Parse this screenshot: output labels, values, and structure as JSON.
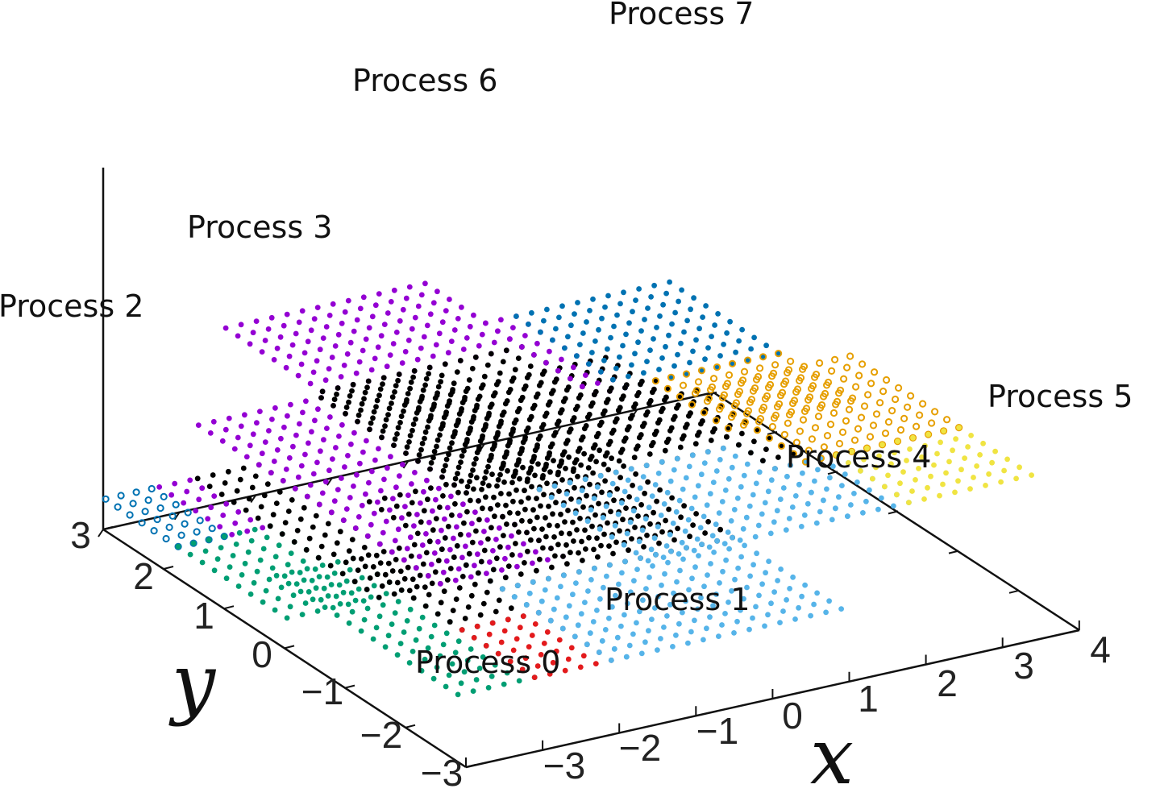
{
  "chart_data": {
    "type": "scatter",
    "title": "",
    "xlabel": "x",
    "ylabel": "y",
    "xlim": [
      -4,
      4
    ],
    "ylim": [
      -3,
      3
    ],
    "x_ticks": [
      "−3",
      "−2",
      "−1",
      "0",
      "1",
      "2",
      "3",
      "4"
    ],
    "y_ticks": [
      "−3",
      "−2",
      "−1",
      "0",
      "1",
      "2"
    ],
    "z_ticks": [
      "3"
    ],
    "grid": false,
    "legend": "none",
    "colors": {
      "black": "#000000",
      "green": "#009e73",
      "red": "#e31a1c",
      "skyblue": "#56b4e9",
      "purple": "#9400d3",
      "orange": "#e69f00",
      "blue": "#0072b2",
      "yellow": "#f0e442"
    },
    "processes": [
      {
        "label": "Process 0",
        "x_range": [
          -3.0,
          -1.0
        ],
        "y_range": [
          -1.6,
          1.4
        ],
        "level": 0,
        "regions": [
          {
            "color": "green",
            "x_range": [
              -3.0,
              -2.0
            ],
            "y_range": [
              -1.6,
              1.4
            ],
            "marker": "dot"
          },
          {
            "color": "black",
            "x_range": [
              -2.0,
              -1.0
            ],
            "y_range": [
              -0.4,
              1.4
            ],
            "marker": "dot"
          },
          {
            "color": "red",
            "x_range": [
              -2.0,
              -1.0
            ],
            "y_range": [
              -1.6,
              -0.4
            ],
            "marker": "dot"
          },
          {
            "color": "skyblue",
            "x_range": [
              -1.0,
              -0.8
            ],
            "y_range": [
              -1.6,
              1.4
            ],
            "marker": "dot"
          }
        ]
      },
      {
        "label": "Process 1",
        "x_range": [
          -1.0,
          2.0
        ],
        "y_range": [
          -1.6,
          2.5
        ],
        "level": 0,
        "regions": [
          {
            "color": "black",
            "x_range": [
              -1.0,
              2.0
            ],
            "y_range": [
              0.2,
              2.5
            ],
            "marker": "dot"
          },
          {
            "color": "skyblue",
            "x_range": [
              -1.0,
              2.0
            ],
            "y_range": [
              -1.6,
              0.2
            ],
            "marker": "dot"
          }
        ]
      },
      {
        "label": "Process 2",
        "x_range": [
          -3.0,
          -1.0
        ],
        "y_range": [
          -1.6,
          1.4
        ],
        "level": 1,
        "regions": [
          {
            "color": "blue",
            "x_range": [
              -3.0,
              -2.3
            ],
            "y_range": [
              0.2,
              1.4
            ],
            "marker": "circle"
          },
          {
            "color": "purple",
            "x_range": [
              -2.3,
              -1.8
            ],
            "y_range": [
              0.2,
              1.4
            ],
            "marker": "dot"
          },
          {
            "color": "green",
            "x_range": [
              -3.0,
              -1.8
            ],
            "y_range": [
              -1.6,
              0.2
            ],
            "marker": "dot"
          },
          {
            "color": "black",
            "x_range": [
              -1.8,
              -1.0
            ],
            "y_range": [
              -1.6,
              1.4
            ],
            "marker": "dot"
          }
        ]
      },
      {
        "label": "Process 3",
        "x_range": [
          -1.0,
          2.0
        ],
        "y_range": [
          -1.6,
          2.5
        ],
        "level": 1,
        "regions": [
          {
            "color": "purple",
            "x_range": [
              -1.0,
              0.6
            ],
            "y_range": [
              -1.6,
              2.5
            ],
            "marker": "dot"
          },
          {
            "color": "black",
            "x_range": [
              0.6,
              2.0
            ],
            "y_range": [
              -1.6,
              2.5
            ],
            "marker": "dot"
          }
        ]
      },
      {
        "label": "Process 4",
        "x_range": [
          -3.0,
          -0.4
        ],
        "y_range": [
          -1.6,
          2.5
        ],
        "level": 2,
        "regions": [
          {
            "color": "black",
            "x_range": [
              -3.0,
              -0.4
            ],
            "y_range": [
              0.2,
              2.5
            ],
            "marker": "dot"
          },
          {
            "color": "skyblue",
            "x_range": [
              -3.0,
              -0.4
            ],
            "y_range": [
              -1.6,
              0.2
            ],
            "marker": "dot"
          }
        ]
      },
      {
        "label": "Process 5",
        "x_range": [
          -0.4,
          2.0
        ],
        "y_range": [
          -1.6,
          1.4
        ],
        "level": 2,
        "regions": [
          {
            "color": "black",
            "x_range": [
              -0.4,
              0.0
            ],
            "y_range": [
              -0.4,
              1.4
            ],
            "marker": "dot"
          },
          {
            "color": "skyblue",
            "x_range": [
              -0.4,
              0.4
            ],
            "y_range": [
              -1.6,
              -0.4
            ],
            "marker": "dot"
          },
          {
            "color": "orange",
            "x_range": [
              0.0,
              2.0
            ],
            "y_range": [
              -0.4,
              1.4
            ],
            "marker": "circle"
          },
          {
            "color": "yellow",
            "x_range": [
              0.4,
              2.0
            ],
            "y_range": [
              -1.6,
              -0.4
            ],
            "marker": "dot"
          }
        ]
      },
      {
        "label": "Process 6",
        "x_range": [
          -3.0,
          -0.4
        ],
        "y_range": [
          -1.6,
          2.5
        ],
        "level": 3,
        "regions": [
          {
            "color": "purple",
            "x_range": [
              -3.0,
              -0.4
            ],
            "y_range": [
              0.8,
              2.5
            ],
            "marker": "dot"
          },
          {
            "color": "black",
            "x_range": [
              -3.0,
              -0.4
            ],
            "y_range": [
              -1.6,
              0.8
            ],
            "marker": "dot"
          }
        ]
      },
      {
        "label": "Process 7",
        "x_range": [
          -0.4,
          2.0
        ],
        "y_range": [
          -1.6,
          1.4
        ],
        "level": 3,
        "regions": [
          {
            "color": "purple",
            "x_range": [
              -0.4,
              0.0
            ],
            "y_range": [
              -0.4,
              1.4
            ],
            "marker": "dot"
          },
          {
            "color": "blue",
            "x_range": [
              0.0,
              2.0
            ],
            "y_range": [
              -0.4,
              1.4
            ],
            "marker": "dot"
          },
          {
            "color": "black",
            "x_range": [
              -0.4,
              0.4
            ],
            "y_range": [
              -1.6,
              -0.4
            ],
            "marker": "dot"
          },
          {
            "color": "orange",
            "x_range": [
              0.4,
              2.0
            ],
            "y_range": [
              -1.6,
              -0.4
            ],
            "marker": "circle"
          }
        ]
      }
    ]
  }
}
